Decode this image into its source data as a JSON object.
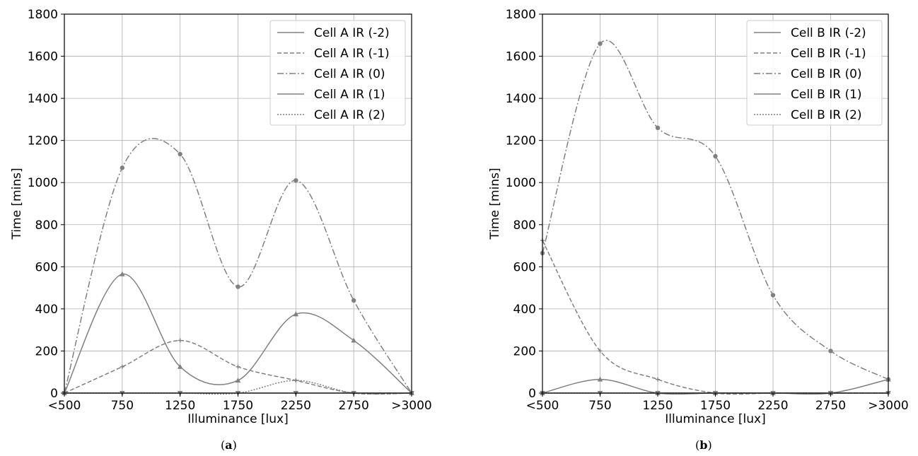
{
  "colors": {
    "series": "#808080",
    "grid": "#b0b0b0",
    "axis": "#000000",
    "legend_border": "#cccccc"
  },
  "chart_data": [
    {
      "type": "line",
      "panel_label": "a",
      "xlabel": "Illuminance [lux]",
      "ylabel": "Time [mins]",
      "categories": [
        "<500",
        "750",
        "1250",
        "1750",
        "2250",
        "2750",
        ">3000"
      ],
      "yticks": [
        0,
        200,
        400,
        600,
        800,
        1000,
        1200,
        1400,
        1600,
        1800
      ],
      "ylim": [
        0,
        1800
      ],
      "grid": true,
      "legend_position": "top-right",
      "series": [
        {
          "name": "Cell A IR (-2)",
          "values": [
            0,
            0,
            0,
            0,
            0,
            0,
            0
          ],
          "dash": "solid",
          "marker": "triangle-down"
        },
        {
          "name": "Cell A IR (-1)",
          "values": [
            0,
            125,
            250,
            125,
            60,
            0,
            0
          ],
          "dash": "dashed",
          "marker": "plus"
        },
        {
          "name": "Cell A IR (0)",
          "values": [
            0,
            1070,
            1135,
            505,
            1010,
            440,
            0
          ],
          "dash": "dashdot",
          "marker": "circle"
        },
        {
          "name": "Cell A IR (1)",
          "values": [
            0,
            565,
            125,
            60,
            375,
            250,
            0
          ],
          "dash": "solid",
          "marker": "triangle-up"
        },
        {
          "name": "Cell A IR (2)",
          "values": [
            0,
            0,
            0,
            0,
            60,
            0,
            0
          ],
          "dash": "dotted",
          "marker": "dot"
        }
      ]
    },
    {
      "type": "line",
      "panel_label": "b",
      "xlabel": "Illuminance [lux]",
      "ylabel": "Time [mins]",
      "categories": [
        "<500",
        "750",
        "1250",
        "1750",
        "2250",
        "2750",
        ">3000"
      ],
      "yticks": [
        0,
        200,
        400,
        600,
        800,
        1000,
        1200,
        1400,
        1600,
        1800
      ],
      "ylim": [
        0,
        1800
      ],
      "grid": true,
      "legend_position": "top-right",
      "series": [
        {
          "name": "Cell B IR (-2)",
          "values": [
            0,
            0,
            0,
            0,
            0,
            0,
            0
          ],
          "dash": "solid",
          "marker": "triangle-down"
        },
        {
          "name": "Cell B IR (-1)",
          "values": [
            725,
            200,
            65,
            0,
            0,
            0,
            0
          ],
          "dash": "dashed",
          "marker": "plus"
        },
        {
          "name": "Cell B IR (0)",
          "values": [
            665,
            1660,
            1260,
            1125,
            465,
            200,
            65
          ],
          "dash": "dashdot",
          "marker": "circle"
        },
        {
          "name": "Cell B IR (1)",
          "values": [
            0,
            65,
            0,
            0,
            0,
            0,
            65
          ],
          "dash": "solid",
          "marker": "triangle-up"
        },
        {
          "name": "Cell B IR (2)",
          "values": [
            0,
            0,
            0,
            0,
            0,
            0,
            0
          ],
          "dash": "dotted",
          "marker": "dot"
        }
      ]
    }
  ]
}
